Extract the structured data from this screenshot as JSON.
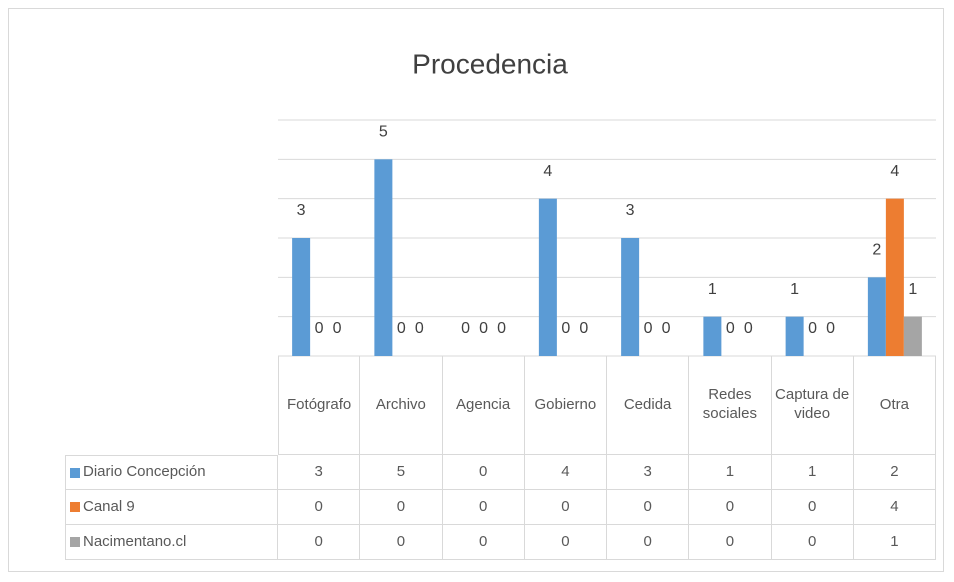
{
  "chart_data": {
    "type": "bar",
    "title": "Procedencia",
    "categories": [
      "Fotógrafo",
      "Archivo",
      "Agencia",
      "Gobierno",
      "Cedida",
      "Redes sociales",
      "Captura de video",
      "Otra"
    ],
    "series": [
      {
        "name": "Diario Concepción",
        "color": "#5b9bd5",
        "values": [
          3,
          5,
          0,
          4,
          3,
          1,
          1,
          2
        ]
      },
      {
        "name": "Canal 9",
        "color": "#ed7d31",
        "values": [
          0,
          0,
          0,
          0,
          0,
          0,
          0,
          4
        ]
      },
      {
        "name": "Nacimentano.cl",
        "color": "#a5a5a5",
        "values": [
          0,
          0,
          0,
          0,
          0,
          0,
          0,
          1
        ]
      }
    ],
    "ylim": [
      0,
      6
    ],
    "yticks": [
      0,
      1,
      2,
      3,
      4,
      5,
      6
    ],
    "grid": true
  }
}
